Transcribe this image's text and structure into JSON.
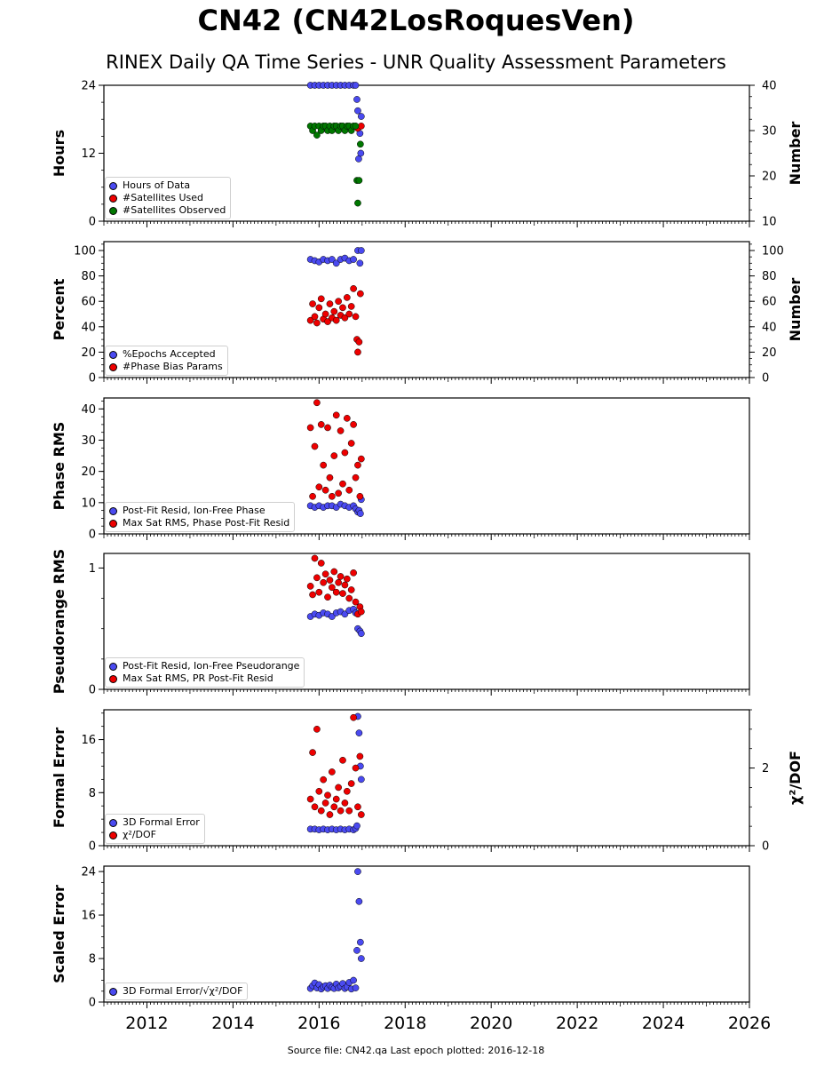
{
  "title": "CN42 (CN42LosRoquesVen)",
  "subtitle": "RINEX Daily QA Time Series - UNR Quality Assessment Parameters",
  "footer": "Source file: CN42.qa Last epoch plotted: 2016-12-18",
  "colors": {
    "blue": "#4a4af0",
    "red": "#ee0000",
    "green": "#007700",
    "axis": "#000000"
  },
  "chart_data": [
    {
      "type": "scatter",
      "ylabel": "Hours",
      "ylabel_right": "Number",
      "xlim": [
        2011.0,
        2026.0
      ],
      "ylim": [
        0,
        24
      ],
      "ylim_right": [
        10,
        40
      ],
      "yticks": [
        0,
        12,
        24
      ],
      "yticks_right": [
        10,
        20,
        30,
        40
      ],
      "legend": [
        "Hours of Data",
        "#Satellites Used",
        "#Satellites Observed"
      ],
      "legend_colors": [
        "#4a4af0",
        "#ee0000",
        "#007700"
      ],
      "series": [
        {
          "name": "Hours of Data",
          "axis": "left",
          "color": "#4a4af0",
          "x": [
            2015.8,
            2015.9,
            2016.0,
            2016.1,
            2016.2,
            2016.3,
            2016.4,
            2016.5,
            2016.6,
            2016.7,
            2016.8,
            2016.85,
            2016.88,
            2016.9,
            2016.92,
            2016.95,
            2016.97,
            2016.98
          ],
          "y": [
            24,
            24,
            24,
            24,
            24,
            24,
            24,
            24,
            24,
            24,
            24,
            24,
            21.5,
            19.5,
            11,
            15.5,
            12,
            18.5
          ]
        },
        {
          "name": "#Satellites Used",
          "axis": "right",
          "color": "#ee0000",
          "x": [
            2016.9,
            2016.98
          ],
          "y": [
            30.5,
            31
          ]
        },
        {
          "name": "#Satellites Observed",
          "axis": "right",
          "color": "#007700",
          "x": [
            2015.8,
            2015.85,
            2015.9,
            2015.95,
            2016.0,
            2016.05,
            2016.1,
            2016.15,
            2016.2,
            2016.25,
            2016.3,
            2016.35,
            2016.4,
            2016.45,
            2016.5,
            2016.55,
            2016.6,
            2016.65,
            2016.7,
            2016.75,
            2016.8,
            2016.85,
            2016.88,
            2016.9,
            2016.93,
            2016.96
          ],
          "y": [
            31,
            30,
            31,
            29,
            31,
            30,
            31,
            31,
            30,
            31,
            30,
            31,
            31,
            30,
            31,
            31,
            30,
            31,
            31,
            30,
            31,
            31,
            19,
            14,
            19,
            27
          ]
        }
      ]
    },
    {
      "type": "scatter",
      "ylabel": "Percent",
      "ylabel_right": "Number",
      "xlim": [
        2011.0,
        2026.0
      ],
      "ylim": [
        0,
        107
      ],
      "ylim_right": [
        0,
        107
      ],
      "yticks": [
        0,
        20,
        40,
        60,
        80,
        100
      ],
      "yticks_right": [
        0,
        20,
        40,
        60,
        80,
        100
      ],
      "legend": [
        "%Epochs Accepted",
        "#Phase Bias Params"
      ],
      "legend_colors": [
        "#4a4af0",
        "#ee0000"
      ],
      "series": [
        {
          "name": "%Epochs Accepted",
          "axis": "left",
          "color": "#4a4af0",
          "x": [
            2015.8,
            2015.9,
            2016.0,
            2016.1,
            2016.2,
            2016.3,
            2016.4,
            2016.5,
            2016.6,
            2016.7,
            2016.8,
            2016.9,
            2016.95,
            2016.98
          ],
          "y": [
            93,
            92,
            91,
            93,
            92,
            93,
            90,
            93,
            94,
            92,
            93,
            100,
            90,
            100
          ]
        },
        {
          "name": "#Phase Bias Params",
          "axis": "right",
          "color": "#ee0000",
          "x": [
            2015.8,
            2015.85,
            2015.9,
            2015.95,
            2016.0,
            2016.05,
            2016.1,
            2016.15,
            2016.2,
            2016.25,
            2016.3,
            2016.35,
            2016.4,
            2016.45,
            2016.5,
            2016.55,
            2016.6,
            2016.65,
            2016.7,
            2016.75,
            2016.8,
            2016.85,
            2016.88,
            2016.9,
            2016.93,
            2016.96
          ],
          "y": [
            45,
            58,
            48,
            43,
            55,
            62,
            46,
            50,
            44,
            58,
            47,
            52,
            45,
            60,
            49,
            55,
            47,
            63,
            50,
            56,
            70,
            48,
            30,
            20,
            28,
            66
          ]
        }
      ]
    },
    {
      "type": "scatter",
      "ylabel": "Phase RMS",
      "xlim": [
        2011.0,
        2026.0
      ],
      "ylim": [
        0,
        43.5
      ],
      "yticks": [
        0,
        10,
        20,
        30,
        40
      ],
      "legend": [
        "Post-Fit Resid, Ion-Free Phase",
        "Max Sat RMS, Phase Post-Fit Resid"
      ],
      "legend_colors": [
        "#4a4af0",
        "#ee0000"
      ],
      "series": [
        {
          "name": "Post-Fit Resid, Ion-Free Phase",
          "axis": "left",
          "color": "#4a4af0",
          "x": [
            2015.8,
            2015.9,
            2016.0,
            2016.1,
            2016.2,
            2016.3,
            2016.4,
            2016.5,
            2016.6,
            2016.7,
            2016.8,
            2016.85,
            2016.9,
            2016.93,
            2016.96,
            2016.98
          ],
          "y": [
            9,
            8.5,
            9,
            8.5,
            9,
            9,
            8.5,
            9.5,
            9,
            8.5,
            9,
            8,
            7,
            7.5,
            6.5,
            11
          ]
        },
        {
          "name": "Max Sat RMS, Phase Post-Fit Resid",
          "axis": "left",
          "color": "#ee0000",
          "x": [
            2015.8,
            2015.85,
            2015.9,
            2015.95,
            2016.0,
            2016.05,
            2016.1,
            2016.15,
            2016.2,
            2016.25,
            2016.3,
            2016.35,
            2016.4,
            2016.45,
            2016.5,
            2016.55,
            2016.6,
            2016.65,
            2016.7,
            2016.75,
            2016.8,
            2016.85,
            2016.9,
            2016.95,
            2016.98
          ],
          "y": [
            34,
            12,
            28,
            42,
            15,
            35,
            22,
            14,
            34,
            18,
            12,
            25,
            38,
            13,
            33,
            16,
            26,
            37,
            14,
            29,
            35,
            18,
            22,
            12,
            24
          ]
        }
      ]
    },
    {
      "type": "scatter",
      "ylabel": "Pseudorange RMS",
      "xlim": [
        2011.0,
        2026.0
      ],
      "ylim": [
        0,
        1.12
      ],
      "yticks": [
        0,
        1
      ],
      "legend": [
        "Post-Fit Resid, Ion-Free Pseudorange",
        "Max Sat RMS, PR Post-Fit Resid"
      ],
      "legend_colors": [
        "#4a4af0",
        "#ee0000"
      ],
      "series": [
        {
          "name": "Post-Fit Resid, Ion-Free Pseudorange",
          "axis": "left",
          "color": "#4a4af0",
          "x": [
            2015.8,
            2015.9,
            2016.0,
            2016.1,
            2016.2,
            2016.3,
            2016.4,
            2016.5,
            2016.6,
            2016.7,
            2016.8,
            2016.85,
            2016.9,
            2016.95,
            2016.98
          ],
          "y": [
            0.6,
            0.62,
            0.61,
            0.63,
            0.62,
            0.6,
            0.63,
            0.64,
            0.62,
            0.65,
            0.66,
            0.63,
            0.5,
            0.48,
            0.46
          ]
        },
        {
          "name": "Max Sat RMS, PR Post-Fit Resid",
          "axis": "left",
          "color": "#ee0000",
          "x": [
            2015.8,
            2015.85,
            2015.9,
            2015.95,
            2016.0,
            2016.05,
            2016.1,
            2016.15,
            2016.2,
            2016.25,
            2016.3,
            2016.35,
            2016.4,
            2016.45,
            2016.5,
            2016.55,
            2016.6,
            2016.65,
            2016.7,
            2016.75,
            2016.8,
            2016.85,
            2016.9,
            2016.95,
            2016.98
          ],
          "y": [
            0.85,
            0.78,
            1.08,
            0.92,
            0.8,
            1.04,
            0.88,
            0.95,
            0.76,
            0.9,
            0.84,
            0.97,
            0.8,
            0.88,
            0.93,
            0.79,
            0.86,
            0.91,
            0.75,
            0.82,
            0.96,
            0.72,
            0.62,
            0.68,
            0.64
          ]
        }
      ]
    },
    {
      "type": "scatter",
      "ylabel": "Formal Error",
      "ylabel_right": "χ²/DOF",
      "xlim": [
        2011.0,
        2026.0
      ],
      "ylim": [
        0,
        20.5
      ],
      "ylim_right": [
        0,
        3.5
      ],
      "yticks": [
        0,
        8,
        16
      ],
      "yticks_right": [
        0,
        2
      ],
      "legend": [
        "3D Formal Error",
        "χ²/DOF"
      ],
      "legend_colors": [
        "#4a4af0",
        "#ee0000"
      ],
      "series": [
        {
          "name": "3D Formal Error",
          "axis": "left",
          "color": "#4a4af0",
          "x": [
            2015.8,
            2015.9,
            2016.0,
            2016.1,
            2016.2,
            2016.3,
            2016.4,
            2016.5,
            2016.6,
            2016.7,
            2016.8,
            2016.85,
            2016.88,
            2016.9,
            2016.93,
            2016.96,
            2016.98
          ],
          "y": [
            2.5,
            2.5,
            2.4,
            2.5,
            2.4,
            2.5,
            2.4,
            2.5,
            2.4,
            2.5,
            2.4,
            2.6,
            3,
            19.5,
            17,
            12,
            10
          ]
        },
        {
          "name": "χ²/DOF",
          "axis": "right",
          "color": "#ee0000",
          "x": [
            2015.8,
            2015.85,
            2015.9,
            2015.95,
            2016.0,
            2016.05,
            2016.1,
            2016.15,
            2016.2,
            2016.25,
            2016.3,
            2016.35,
            2016.4,
            2016.45,
            2016.5,
            2016.55,
            2016.6,
            2016.65,
            2016.7,
            2016.75,
            2016.8,
            2016.85,
            2016.9,
            2016.95,
            2016.98
          ],
          "y": [
            1.2,
            2.4,
            1.0,
            3.0,
            1.4,
            0.9,
            1.7,
            1.1,
            1.3,
            0.8,
            1.9,
            1.0,
            1.2,
            1.5,
            0.9,
            2.2,
            1.1,
            1.4,
            0.9,
            1.6,
            3.3,
            2.0,
            1.0,
            2.3,
            0.8
          ]
        }
      ]
    },
    {
      "type": "scatter",
      "ylabel": "Scaled Error",
      "xlim": [
        2011.0,
        2026.0
      ],
      "ylim": [
        0,
        25
      ],
      "yticks": [
        0,
        8,
        16,
        24
      ],
      "xticks": [
        2012,
        2014,
        2016,
        2018,
        2020,
        2022,
        2024,
        2026
      ],
      "legend": [
        "3D Formal Error/√χ²/DOF"
      ],
      "legend_colors": [
        "#4a4af0"
      ],
      "series": [
        {
          "name": "3D Formal Error/√χ²/DOF",
          "axis": "left",
          "color": "#4a4af0",
          "x": [
            2015.8,
            2015.85,
            2015.9,
            2015.95,
            2016.0,
            2016.05,
            2016.1,
            2016.15,
            2016.2,
            2016.25,
            2016.3,
            2016.35,
            2016.4,
            2016.45,
            2016.5,
            2016.55,
            2016.6,
            2016.65,
            2016.7,
            2016.75,
            2016.8,
            2016.85,
            2016.88,
            2016.9,
            2016.93,
            2016.96,
            2016.98
          ],
          "y": [
            2.5,
            3.0,
            3.5,
            2.6,
            3.2,
            2.4,
            2.8,
            3.0,
            2.5,
            3.1,
            2.7,
            2.5,
            3.3,
            2.6,
            2.9,
            3.4,
            2.5,
            2.8,
            3.6,
            2.4,
            4.0,
            2.6,
            9.5,
            24,
            18.5,
            11,
            8
          ]
        }
      ]
    }
  ]
}
